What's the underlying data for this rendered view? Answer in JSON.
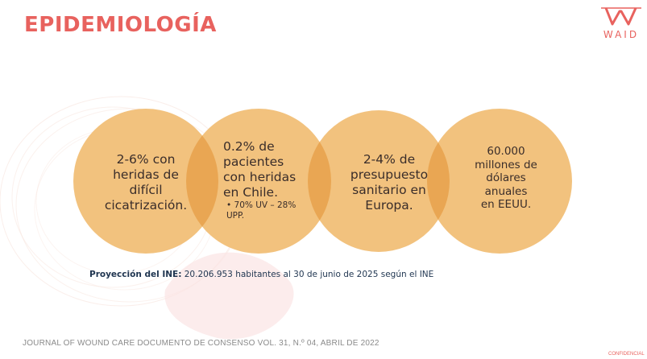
{
  "slide": {
    "title": "EPIDEMIOLOGÍA",
    "logo_text": "WAID",
    "circles": [
      {
        "text": "2-6% con\nheridas de\ndifícil\ncicatrización."
      },
      {
        "text": "0.2% de\npacientes\ncon heridas\nen Chile.",
        "bullet": "• 70% UV – 28%\n  UPP."
      },
      {
        "text": "2-4% de\npresupuesto\nsanitario en\nEuropa."
      },
      {
        "text": "60.000\nmillones de\ndólares\nanuales\nen EEUU."
      }
    ],
    "projection_label": "Proyección del INE:",
    "projection_text": " 20.206.953 habitantes al 30 de junio de 2025 según el INE",
    "source": "JOURNAL OF WOUND CARE DOCUMENTO DE CONSENSO VOL. 31, N.º 04, ABRIL DE 2022",
    "confidential": "CONFIDENCIAL"
  },
  "colors": {
    "accent": "#e8625e",
    "circle_fill": "#f2c27e",
    "overlap_fill": "#e9a653",
    "text": "#3a2d2a",
    "projection_text": "#1f3550"
  }
}
